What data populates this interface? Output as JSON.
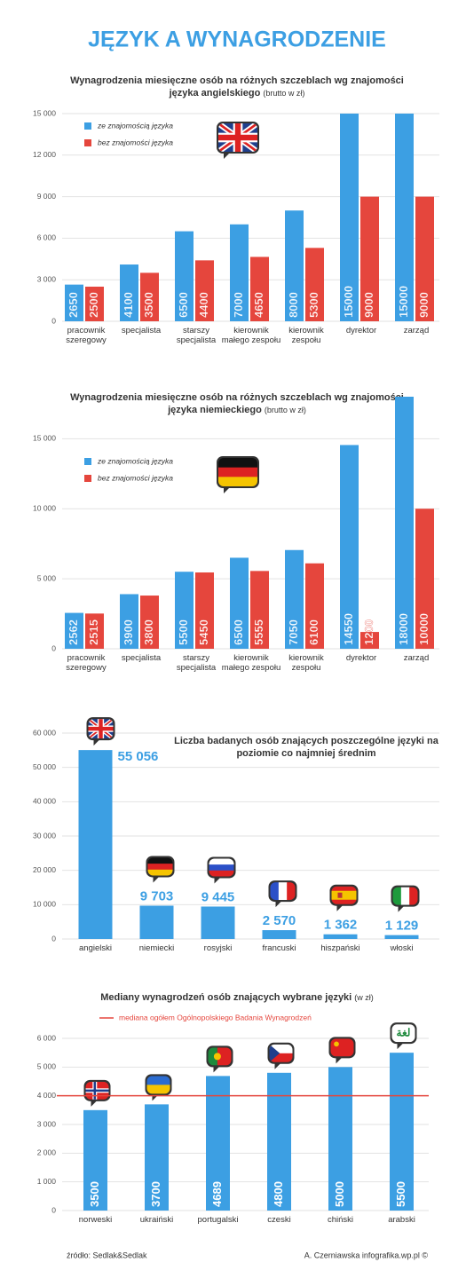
{
  "title": "JĘZYK A WYNAGRODZENIE",
  "chart_data": [
    {
      "type": "bar",
      "title": "Wynagrodzenia miesięczne osób na różnych szczeblach wg znajomości języka angielskiego",
      "subtitle": "(brutto w zł)",
      "categories": [
        "pracownik szeregowy",
        "specjalista",
        "starszy specjalista",
        "kierownik małego zespołu",
        "kierownik zespołu",
        "dyrektor",
        "zarząd"
      ],
      "series": [
        {
          "name": "ze znajomością języka",
          "color": "#3c9fe3",
          "values": [
            2650,
            4100,
            6500,
            7000,
            8000,
            15000,
            15000
          ]
        },
        {
          "name": "bez znajomości języka",
          "color": "#e5463d",
          "values": [
            2500,
            3500,
            4400,
            4650,
            5300,
            9000,
            9000
          ]
        }
      ],
      "ylim": [
        0,
        15000
      ],
      "yticks": [
        0,
        {
          "value": 3000,
          "label": "3 000"
        },
        {
          "value": 6000,
          "label": "6 000"
        },
        {
          "value": 9000,
          "label": "9 000"
        },
        {
          "value": 12000,
          "label": "12 000"
        },
        {
          "value": 15000,
          "label": "15 000"
        }
      ],
      "grid": true
    },
    {
      "type": "bar",
      "title": "Wynagrodzenia miesięczne osób na różnych szczeblach wg znajomości języka niemieckiego",
      "subtitle": "(brutto w zł)",
      "categories": [
        "pracownik szeregowy",
        "specjalista",
        "starszy specjalista",
        "kierownik małego zespołu",
        "kierownik zespołu",
        "dyrektor",
        "zarząd"
      ],
      "series": [
        {
          "name": "ze znajomością języka",
          "color": "#3c9fe3",
          "values": [
            2562,
            3900,
            5500,
            6500,
            7050,
            14550,
            18000
          ]
        },
        {
          "name": "bez znajomości języka",
          "color": "#e5463d",
          "values": [
            2515,
            3800,
            5450,
            5555,
            6100,
            1200,
            10000
          ]
        }
      ],
      "ylim": [
        0,
        18000
      ],
      "yticks": [
        0,
        {
          "value": 5000,
          "label": "5 000"
        },
        {
          "value": 10000,
          "label": "10 000"
        },
        {
          "value": 15000,
          "label": "15 000"
        }
      ],
      "grid": true
    },
    {
      "type": "bar",
      "title": "Liczba badanych osób znających poszczególne języki na poziomie co najmniej średnim",
      "categories": [
        "angielski",
        "niemiecki",
        "rosyjski",
        "francuski",
        "hiszpański",
        "włoski"
      ],
      "values": [
        55056,
        9703,
        9445,
        2570,
        1362,
        1129
      ],
      "value_labels": [
        "55 056",
        "9 703",
        "9 445",
        "2 570",
        "1 362",
        "1 129"
      ],
      "color": "#3c9fe3",
      "ylim": [
        0,
        60000
      ],
      "yticks": [
        0,
        {
          "value": 10000,
          "label": "10 000"
        },
        {
          "value": 20000,
          "label": "20 000"
        },
        {
          "value": 30000,
          "label": "30 000"
        },
        {
          "value": 40000,
          "label": "40 000"
        },
        {
          "value": 50000,
          "label": "50 000"
        },
        {
          "value": 60000,
          "label": "60 000"
        }
      ],
      "grid": true
    },
    {
      "type": "bar",
      "title": "Mediany wynagrodzeń osób znających wybrane języki",
      "subtitle": "(w zł)",
      "categories": [
        "norweski",
        "ukraiński",
        "portugalski",
        "czeski",
        "chiński",
        "arabski"
      ],
      "values": [
        3500,
        3700,
        4689,
        4800,
        5000,
        5500
      ],
      "color": "#3c9fe3",
      "reference_line": {
        "name": "mediana ogółem Ogólnopolskiego Badania Wynagrodzeń",
        "value": 4000,
        "color": "#e5463d"
      },
      "icon_text": "لغة",
      "ylim": [
        0,
        6000
      ],
      "yticks": [
        0,
        {
          "value": 1000,
          "label": "1 000"
        },
        {
          "value": 2000,
          "label": "2 000"
        },
        {
          "value": 3000,
          "label": "3 000"
        },
        {
          "value": 4000,
          "label": "4 000"
        },
        {
          "value": 5000,
          "label": "5 000"
        },
        {
          "value": 6000,
          "label": "6 000"
        }
      ],
      "grid": true
    }
  ],
  "source": "źródło: Sedlak&Sedlak",
  "credit": "A. Czerniawska infografika.wp.pl ©"
}
